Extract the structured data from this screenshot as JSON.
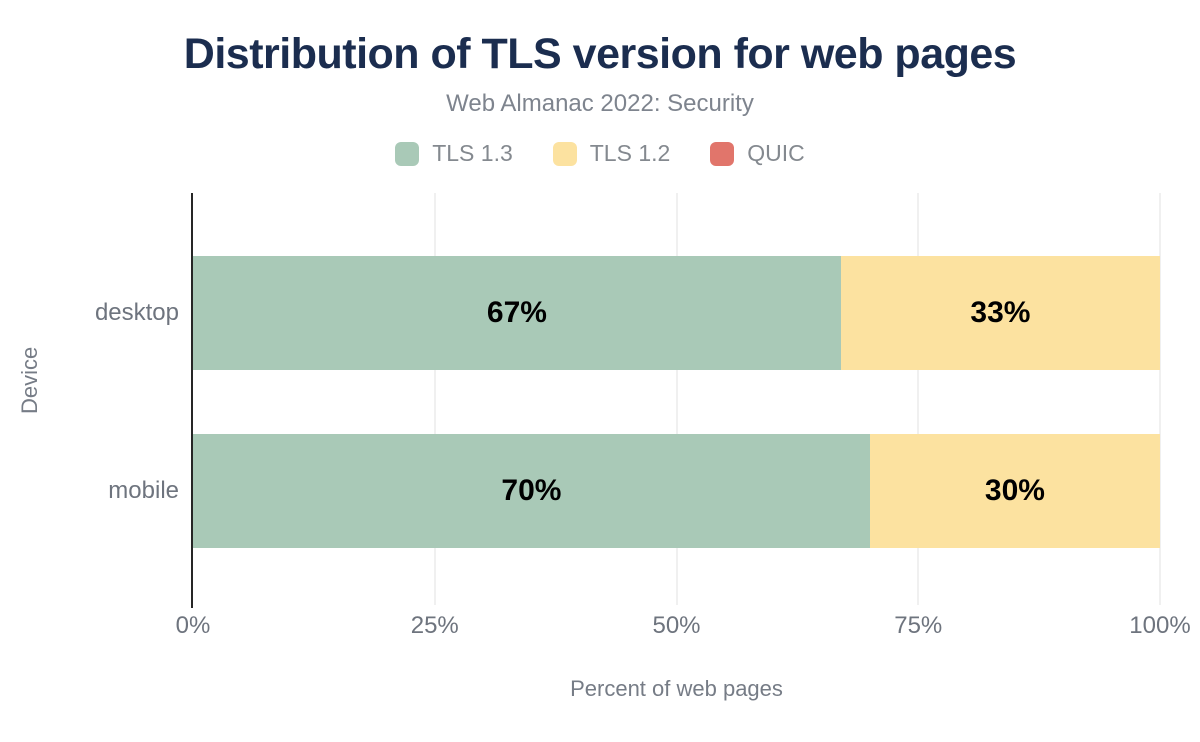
{
  "chart_data": {
    "type": "bar",
    "orientation": "horizontal",
    "stacked": true,
    "title": "Distribution of TLS version for web pages",
    "subtitle": "Web Almanac 2022: Security",
    "xlabel": "Percent of web pages",
    "ylabel": "Device",
    "categories": [
      "desktop",
      "mobile"
    ],
    "series": [
      {
        "name": "TLS 1.3",
        "color": "#a9c9b7",
        "values": [
          67,
          70
        ]
      },
      {
        "name": "TLS 1.2",
        "color": "#fce2a0",
        "values": [
          33,
          30
        ]
      },
      {
        "name": "QUIC",
        "color": "#e1756b",
        "values": [
          0,
          0
        ]
      }
    ],
    "value_suffix": "%",
    "xlim": [
      0,
      100
    ],
    "xticks": [
      0,
      25,
      50,
      75,
      100
    ],
    "xtick_labels": [
      "0%",
      "25%",
      "50%",
      "75%",
      "100%"
    ],
    "grid": "vertical",
    "legend_position": "top",
    "colors": {
      "background": "#ffffff",
      "title": "#1b2d4f",
      "subtitle": "#7e848e",
      "legend_text": "#84898f",
      "axis_text": "#6e747e",
      "axis_title_text": "#767c86",
      "data_label": "#000000",
      "axis_line": "#262626",
      "gridline": "#f0f0f0"
    }
  }
}
